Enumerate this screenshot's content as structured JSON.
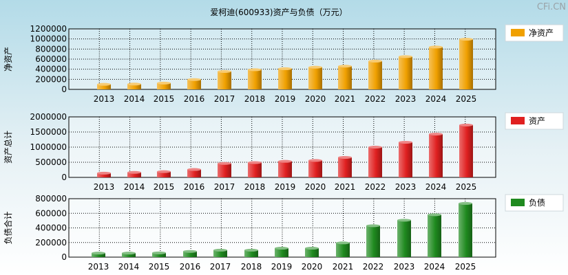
{
  "title": "爱柯迪(600933)资产与负债（万元）",
  "watermark": "CFi.CN",
  "chart_data": [
    {
      "type": "bar",
      "name": "net-assets",
      "ylabel": "净资产",
      "legend": "净资产",
      "color": "#f0a000",
      "categories": [
        "2013",
        "2014",
        "2015",
        "2016",
        "2017",
        "2018",
        "2019",
        "2020",
        "2021",
        "2022",
        "2023",
        "2024",
        "2025"
      ],
      "values": [
        100000,
        105000,
        125000,
        195000,
        355000,
        390000,
        410000,
        440000,
        460000,
        560000,
        650000,
        840000,
        995000
      ],
      "ylim": [
        0,
        1200000
      ],
      "yticks": [
        "0",
        "200000",
        "400000",
        "600000",
        "800000",
        "1000000",
        "1200000"
      ]
    },
    {
      "type": "bar",
      "name": "total-assets",
      "ylabel": "资产总计",
      "legend": "资产",
      "color": "#e02020",
      "categories": [
        "2013",
        "2014",
        "2015",
        "2016",
        "2017",
        "2018",
        "2019",
        "2020",
        "2021",
        "2022",
        "2023",
        "2024",
        "2025"
      ],
      "values": [
        140000,
        165000,
        190000,
        260000,
        460000,
        490000,
        530000,
        560000,
        660000,
        1000000,
        1160000,
        1430000,
        1730000
      ],
      "ylim": [
        0,
        2000000
      ],
      "yticks": [
        "0",
        "500000",
        "1000000",
        "1500000",
        "2000000"
      ]
    },
    {
      "type": "bar",
      "name": "total-liabilities",
      "ylabel": "负债合计",
      "legend": "负债",
      "color": "#1f8a1f",
      "categories": [
        "2013",
        "2014",
        "2015",
        "2016",
        "2017",
        "2018",
        "2019",
        "2020",
        "2021",
        "2022",
        "2023",
        "2024",
        "2025"
      ],
      "values": [
        55000,
        55000,
        58000,
        78000,
        95000,
        95000,
        122000,
        122000,
        195000,
        430000,
        505000,
        580000,
        735000
      ],
      "ylim": [
        0,
        800000
      ],
      "yticks": [
        "0",
        "200000",
        "400000",
        "600000",
        "800000"
      ]
    }
  ]
}
